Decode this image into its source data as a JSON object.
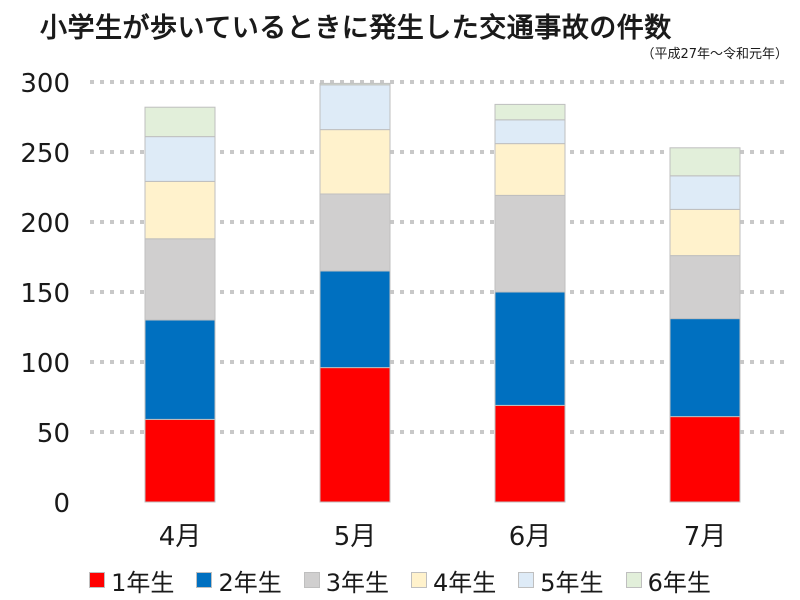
{
  "chart_data": {
    "type": "bar",
    "stacked": true,
    "title": "小学生が歩いているときに発生した交通事故の件数",
    "subtitle": "（平成27年～令和元年）",
    "categories": [
      "4月",
      "5月",
      "6月",
      "7月"
    ],
    "ylim": [
      0,
      300
    ],
    "yticks": [
      0,
      50,
      100,
      150,
      200,
      250,
      300
    ],
    "grid": true,
    "legend_position": "bottom",
    "series": [
      {
        "name": "1年生",
        "color": "#ff0000",
        "values": [
          59,
          96,
          69,
          61
        ]
      },
      {
        "name": "2年生",
        "color": "#0070c0",
        "values": [
          71,
          69,
          81,
          70
        ]
      },
      {
        "name": "3年生",
        "color": "#d0cfcf",
        "values": [
          58,
          55,
          69,
          45
        ]
      },
      {
        "name": "4年生",
        "color": "#fff2cc",
        "values": [
          41,
          46,
          37,
          33
        ]
      },
      {
        "name": "5年生",
        "color": "#deebf7",
        "values": [
          32,
          32,
          17,
          24
        ]
      },
      {
        "name": "6年生",
        "color": "#e2efda",
        "values": [
          21,
          1,
          11,
          20
        ]
      }
    ]
  }
}
